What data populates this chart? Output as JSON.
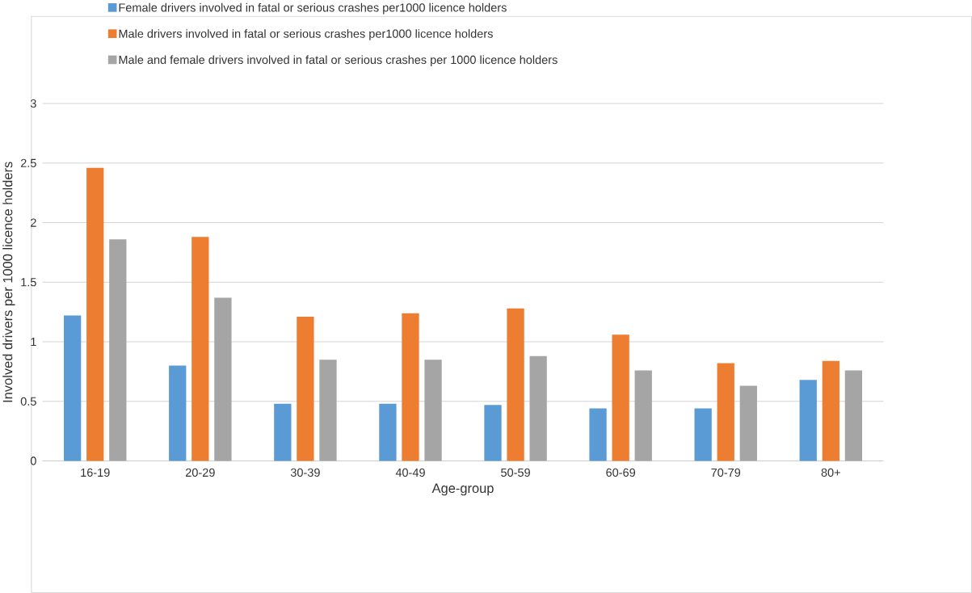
{
  "chart_data": {
    "type": "bar",
    "xlabel": "Age-group",
    "ylabel": "Involved drivers per 1000 licence holders",
    "categories": [
      "16-19",
      "20-29",
      "30-39",
      "40-49",
      "50-59",
      "60-69",
      "70-79",
      "80+"
    ],
    "series": [
      {
        "name": "Female drivers involved in fatal or serious crashes per1000 licence holders",
        "color": "#5b9bd5",
        "values": [
          1.22,
          0.8,
          0.48,
          0.48,
          0.47,
          0.44,
          0.44,
          0.68
        ]
      },
      {
        "name": "Male drivers involved in fatal or serious crashes per1000 licence holders",
        "color": "#ed7d31",
        "values": [
          2.46,
          1.88,
          1.21,
          1.24,
          1.28,
          1.06,
          0.82,
          0.84
        ]
      },
      {
        "name": "Male and female drivers involved in fatal or serious crashes per 1000 licence holders",
        "color": "#a5a5a5",
        "values": [
          1.86,
          1.37,
          0.85,
          0.85,
          0.88,
          0.76,
          0.63,
          0.76
        ]
      }
    ],
    "ylim": [
      0,
      3
    ],
    "yticks": [
      0,
      0.5,
      1,
      1.5,
      2,
      2.5,
      3
    ],
    "grid": "y",
    "legend": "top"
  }
}
